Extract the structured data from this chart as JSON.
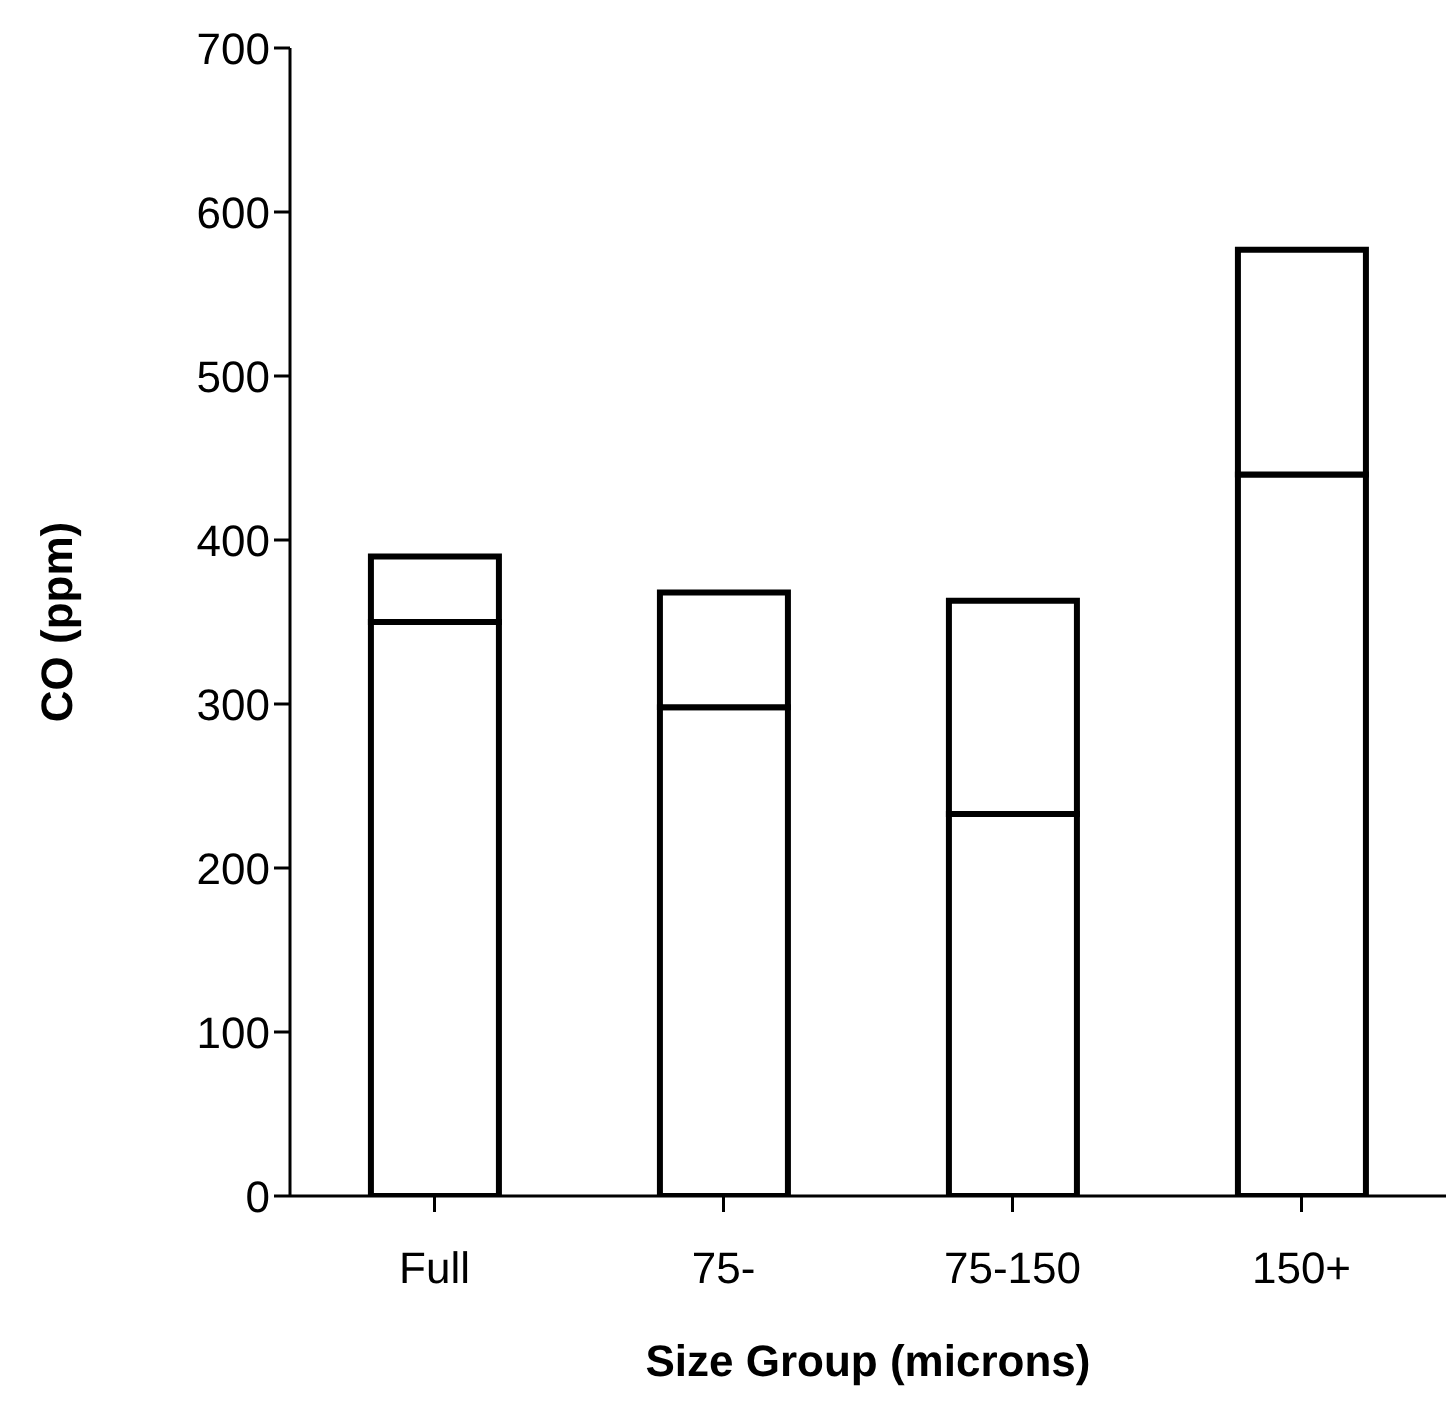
{
  "chart_data": {
    "type": "bar",
    "stacked": true,
    "xlabel": "Size Group (microns)",
    "ylabel": "CO (ppm)",
    "categories": [
      "Full",
      "75-",
      "75-150",
      "150+"
    ],
    "series": [
      {
        "color": "#ffffff",
        "values": [
          350,
          298,
          233,
          440
        ]
      },
      {
        "color": "#ffffff",
        "values": [
          40,
          70,
          130,
          137
        ]
      }
    ],
    "ylim": [
      0,
      700
    ],
    "yticks": [
      0,
      100,
      200,
      300,
      400,
      500,
      600,
      700
    ],
    "grid": false,
    "legend": false
  }
}
